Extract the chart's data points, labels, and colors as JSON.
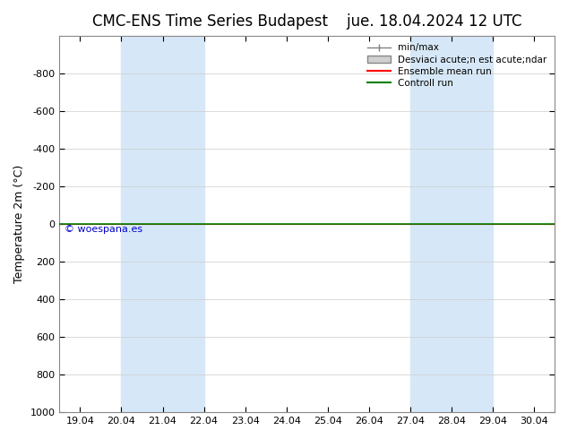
{
  "title_left": "CMC-ENS Time Series Budapest",
  "title_right": "jue. 18.04.2024 12 UTC",
  "ylabel": "Temperature 2m (°C)",
  "ylim": [
    -1000,
    1000
  ],
  "yticks": [
    -800,
    -600,
    -400,
    -200,
    0,
    200,
    400,
    600,
    800,
    1000
  ],
  "xtick_labels": [
    "19.04",
    "20.04",
    "21.04",
    "22.04",
    "23.04",
    "24.04",
    "25.04",
    "26.04",
    "27.04",
    "28.04",
    "29.04",
    "30.04"
  ],
  "shade_ranges": [
    [
      1,
      3
    ],
    [
      8,
      10
    ]
  ],
  "shade_color": "#d6e8f7",
  "bg_color": "#ffffff",
  "green_line_y": 0,
  "green_line_color": "#008000",
  "red_line_color": "#ff0000",
  "watermark": "© woespana.es",
  "watermark_color": "#0000cc",
  "legend_labels": [
    "min/max",
    "Desviaci acute;n est acute;ndar",
    "Ensemble mean run",
    "Controll run"
  ],
  "title_fontsize": 12,
  "axis_fontsize": 9,
  "tick_fontsize": 8
}
